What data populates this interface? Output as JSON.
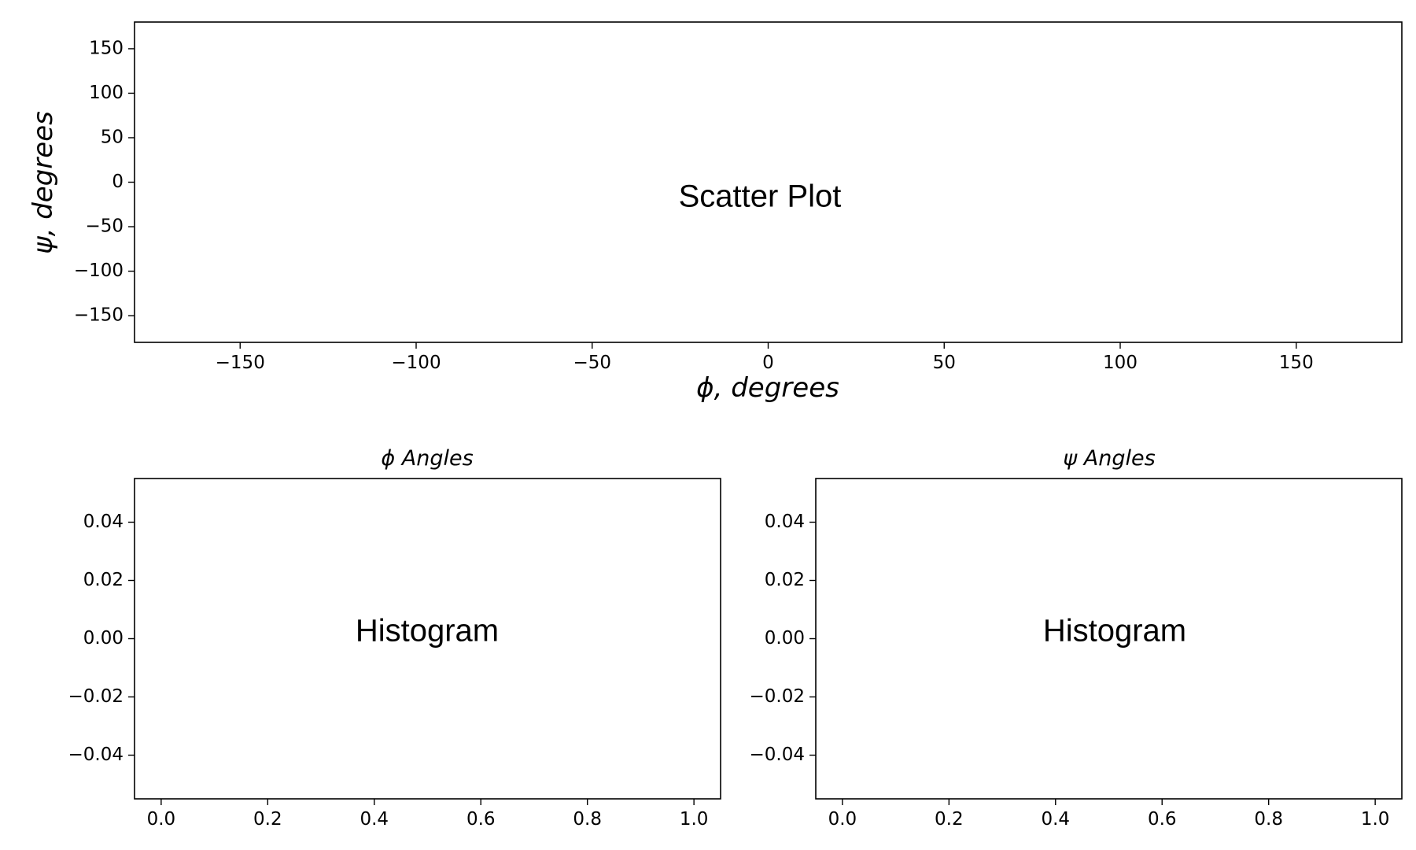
{
  "chart_data": [
    {
      "type": "scatter",
      "title": "",
      "annotation": "Scatter Plot",
      "xlabel": "ϕ, degrees",
      "ylabel": "ψ, degrees",
      "xlim": [
        -180,
        180
      ],
      "ylim": [
        -180,
        180
      ],
      "xticks": [
        -150,
        -100,
        -50,
        0,
        50,
        100,
        150
      ],
      "yticks": [
        -150,
        -100,
        -50,
        0,
        50,
        100,
        150
      ],
      "xtick_labels": [
        "−150",
        "−100",
        "−50",
        "0",
        "50",
        "100",
        "150"
      ],
      "ytick_labels": [
        "−150",
        "−100",
        "−50",
        "0",
        "50",
        "100",
        "150"
      ],
      "series": [],
      "grid": false
    },
    {
      "type": "bar",
      "title": "ϕ Angles",
      "annotation": "Histogram",
      "xlabel": "",
      "ylabel": "",
      "xlim": [
        -0.05,
        1.05
      ],
      "ylim": [
        -0.055,
        0.055
      ],
      "xticks": [
        0.0,
        0.2,
        0.4,
        0.6,
        0.8,
        1.0
      ],
      "yticks": [
        -0.04,
        -0.02,
        0.0,
        0.02,
        0.04
      ],
      "xtick_labels": [
        "0.0",
        "0.2",
        "0.4",
        "0.6",
        "0.8",
        "1.0"
      ],
      "ytick_labels": [
        "−0.04",
        "−0.02",
        "0.00",
        "0.02",
        "0.04"
      ],
      "series": [],
      "grid": false
    },
    {
      "type": "bar",
      "title": "ψ Angles",
      "annotation": "Histogram",
      "xlabel": "",
      "ylabel": "",
      "xlim": [
        -0.05,
        1.05
      ],
      "ylim": [
        -0.055,
        0.055
      ],
      "xticks": [
        0.0,
        0.2,
        0.4,
        0.6,
        0.8,
        1.0
      ],
      "yticks": [
        -0.04,
        -0.02,
        0.0,
        0.02,
        0.04
      ],
      "xtick_labels": [
        "0.0",
        "0.2",
        "0.4",
        "0.6",
        "0.8",
        "1.0"
      ],
      "ytick_labels": [
        "−0.04",
        "−0.02",
        "0.00",
        "0.02",
        "0.04"
      ],
      "series": [],
      "grid": false
    }
  ]
}
